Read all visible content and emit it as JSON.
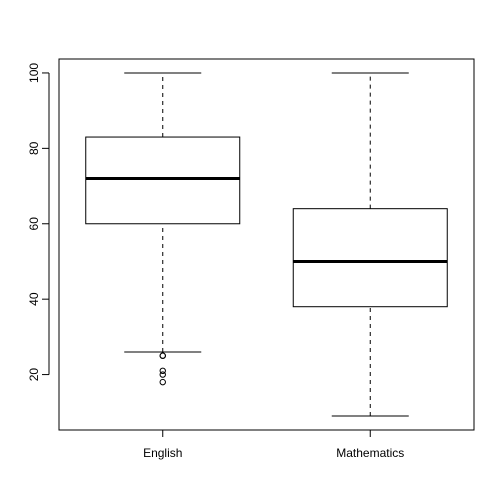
{
  "chart_data": {
    "type": "boxplot",
    "title": "",
    "xlabel": "",
    "ylabel": "",
    "ylim": [
      5.3,
      103.7
    ],
    "y_ticks": [
      20,
      40,
      60,
      80,
      100
    ],
    "grid": false,
    "categories": [
      "English",
      "Mathematics"
    ],
    "boxes": [
      {
        "name": "English",
        "whisker_low": 26,
        "q1": 60,
        "median": 72,
        "q3": 83,
        "whisker_high": 100,
        "outliers": [
          25,
          25,
          21,
          20,
          18
        ]
      },
      {
        "name": "Mathematics",
        "whisker_low": 9,
        "q1": 38,
        "median": 50,
        "q3": 64,
        "whisker_high": 100,
        "outliers": []
      }
    ],
    "colors": {
      "stroke": "#000000",
      "background": "#ffffff"
    }
  }
}
